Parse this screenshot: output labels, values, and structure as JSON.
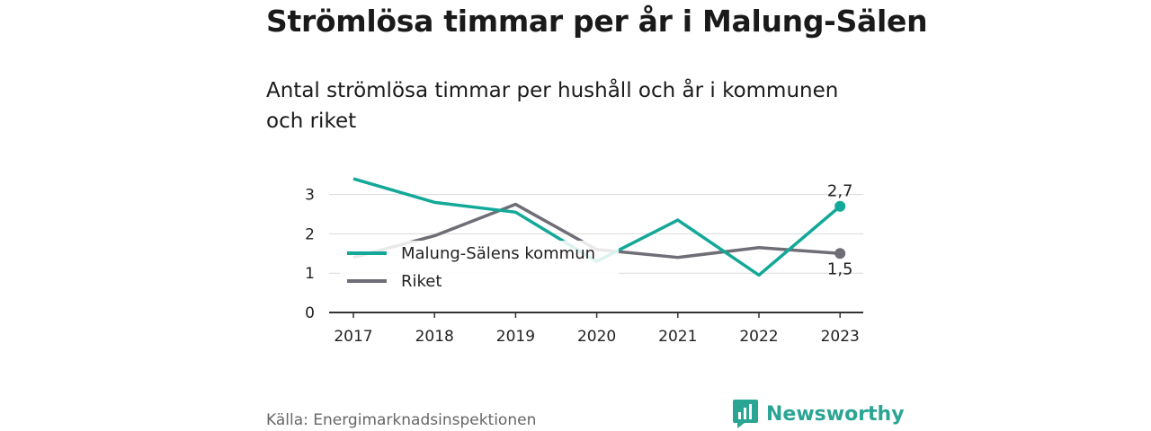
{
  "header": {
    "title": "Strömlösa timmar per år i Malung-Sälen",
    "subtitle": "Antal strömlösa timmar per hushåll och år i kommunen och riket"
  },
  "footer": {
    "source": "Källa: Energimarknadsinspektionen",
    "brand": "Newsworthy",
    "brand_icon": "bar-chart-logo-icon"
  },
  "colors": {
    "malung": "#13a898",
    "riket": "#6f6d75",
    "grid": "#d9d9d9",
    "axis": "#333333"
  },
  "chart_data": {
    "type": "line",
    "categories": [
      "2017",
      "2018",
      "2019",
      "2020",
      "2021",
      "2022",
      "2023"
    ],
    "ylim": [
      0,
      3.2
    ],
    "yticks": [
      "0",
      "1",
      "2",
      "3"
    ],
    "grid": true,
    "legend_position": "inside-left",
    "series": [
      {
        "name": "Malung-Sälens kommun",
        "values": [
          3.4,
          2.8,
          2.55,
          1.3,
          2.35,
          0.95,
          2.7
        ],
        "end_label": "2,7"
      },
      {
        "name": "Riket",
        "values": [
          1.4,
          1.95,
          2.75,
          1.6,
          1.4,
          1.65,
          1.5
        ],
        "end_label": "1,5"
      }
    ]
  }
}
